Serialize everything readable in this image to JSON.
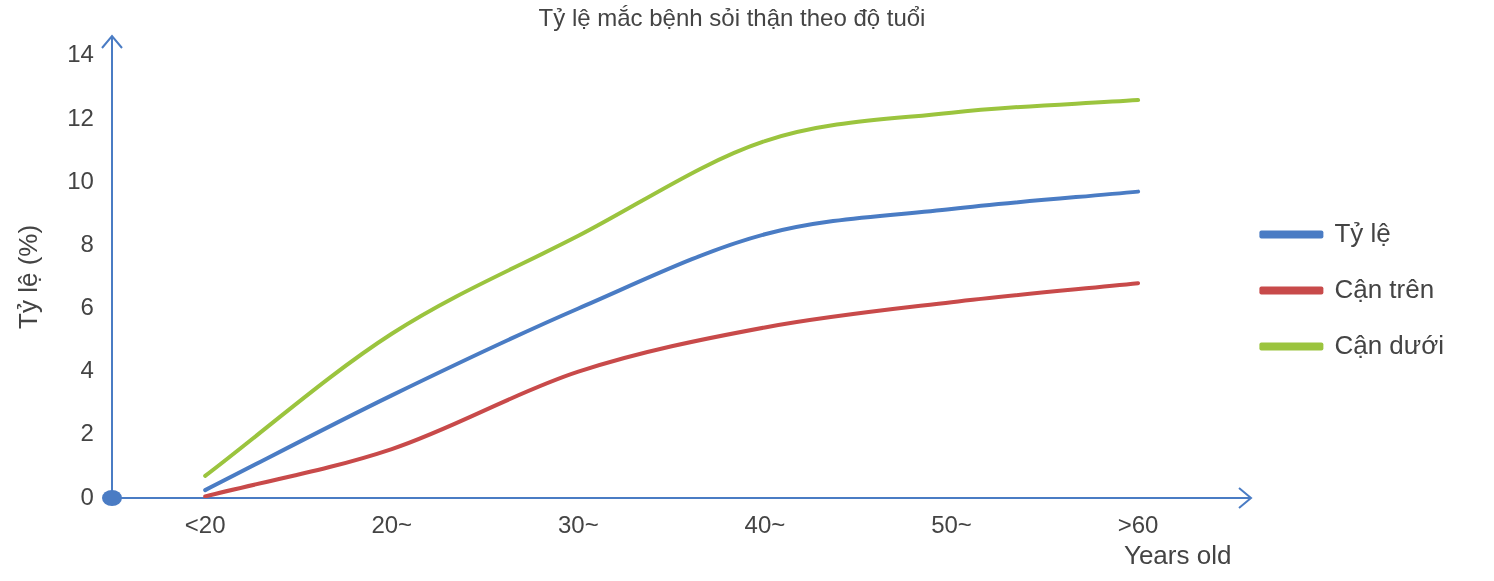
{
  "chart_data": {
    "type": "line",
    "title": "Tỷ lệ mắc bệnh sỏi thận theo độ tuổi",
    "xlabel": "Years old",
    "ylabel": "Tỷ lệ (%)",
    "categories": [
      "<20",
      "20~",
      "30~",
      "40~",
      "50~",
      ">60"
    ],
    "series": [
      {
        "name": "Tỷ lệ",
        "color": "#4a7cc4",
        "values": [
          0.25,
          3.25,
          6.0,
          8.35,
          9.15,
          9.7
        ]
      },
      {
        "name": "Cận trên",
        "color": "#c84a4a",
        "values": [
          0.05,
          1.55,
          4.0,
          5.4,
          6.2,
          6.8
        ]
      },
      {
        "name": "Cận dưới",
        "color": "#9bc43e",
        "values": [
          0.7,
          5.2,
          8.3,
          11.3,
          12.2,
          12.6
        ]
      }
    ],
    "ylim": [
      0,
      14
    ],
    "yticks": [
      0,
      2,
      4,
      6,
      8,
      10,
      12,
      14
    ],
    "grid": false,
    "legend": "right",
    "marker": "none",
    "line_style": "solid"
  }
}
